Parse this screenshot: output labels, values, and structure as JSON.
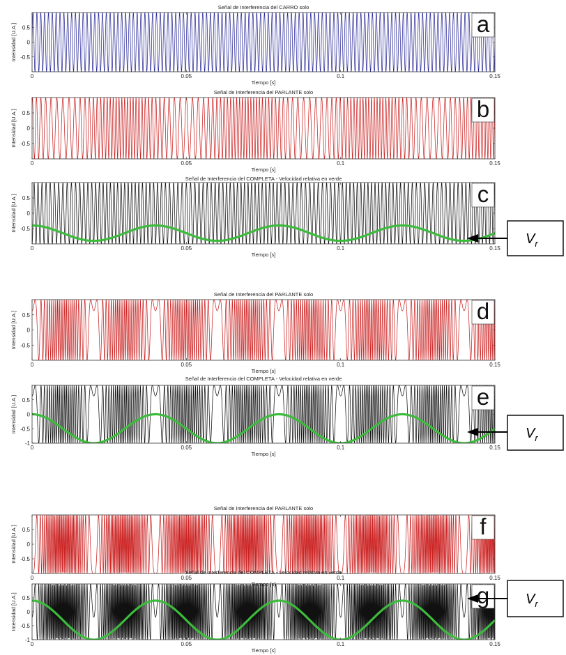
{
  "chart_data": [
    {
      "id": "a",
      "type": "line",
      "panel_letter": "a",
      "title": "Señal de Interferencia del CARRO solo",
      "xlabel": "Tiempo [s]",
      "ylabel": "Intensidad [U.A.]",
      "xlim": [
        0,
        0.15
      ],
      "ylim": [
        -1,
        1
      ],
      "x_ticks": [
        0,
        0.05,
        0.1,
        0.15
      ],
      "x_tick_labels": [
        "0",
        "0.05",
        "0.1",
        "0.15"
      ],
      "y_ticks": [
        0.5,
        0,
        -0.5
      ],
      "y_tick_labels": [
        "0.5",
        "0",
        "-0.5"
      ],
      "series": [
        {
          "color": "#2b2b9a",
          "signal": {
            "kind": "sine",
            "cycles_per_s": 800,
            "amplitude": 1
          }
        }
      ],
      "vr_marker": false
    },
    {
      "id": "b",
      "type": "line",
      "panel_letter": "b",
      "title": "Señal de Interferencia del PARLANTE solo",
      "xlabel": "Tiempo [s]",
      "ylabel": "Intensidad [U.A.]",
      "xlim": [
        0,
        0.15
      ],
      "ylim": [
        -1,
        1
      ],
      "x_ticks": [
        0,
        0.05,
        0.1,
        0.15
      ],
      "x_tick_labels": [
        "0",
        "0.05",
        "0.1",
        "0.15"
      ],
      "y_ticks": [
        0.5,
        0,
        -0.5
      ],
      "y_tick_labels": [
        "0.5",
        "0",
        "-0.5"
      ],
      "series": [
        {
          "color": "#cc2222",
          "signal": {
            "kind": "fm",
            "phase_rate": 800,
            "mod_depth": 12,
            "mod_freq_hz": 25,
            "amplitude": 1
          }
        }
      ],
      "vr_marker": false
    },
    {
      "id": "c",
      "type": "line",
      "panel_letter": "c",
      "title": "Señal de Interferencia del COMPLETA - Velocidad relativa en verde",
      "xlabel": "Tiempo [s]",
      "ylabel": "Intensidad [U.A.]",
      "xlim": [
        0,
        0.15
      ],
      "ylim": [
        -1,
        1
      ],
      "x_ticks": [
        0,
        0.05,
        0.1,
        0.15
      ],
      "x_tick_labels": [
        "0",
        "0.05",
        "0.1",
        "0.15"
      ],
      "y_ticks": [
        0.5,
        0,
        -0.5
      ],
      "y_tick_labels": [
        "0.5",
        "0",
        "-0.5"
      ],
      "series": [
        {
          "color": "#111111",
          "signal": {
            "kind": "fm",
            "phase_rate": 800,
            "mod_depth": 3,
            "mod_freq_hz": 25,
            "amplitude": 1
          }
        },
        {
          "color": "#3dbb3d",
          "velocity": true,
          "signal": {
            "kind": "vel",
            "center": -0.65,
            "amp": 0.25,
            "freq_hz": 25
          }
        }
      ],
      "vr_marker": true
    },
    {
      "id": "d",
      "type": "line",
      "panel_letter": "d",
      "title": "Señal de Interferencia del PARLANTE solo",
      "xlabel": "Tiempo [s]",
      "ylabel": "Intensidad [U.A.]",
      "xlim": [
        0,
        0.15
      ],
      "ylim": [
        -1,
        1
      ],
      "x_ticks": [
        0,
        0.05,
        0.1,
        0.15
      ],
      "x_tick_labels": [
        "0",
        "0.05",
        "0.1",
        "0.15"
      ],
      "y_ticks": [
        0.5,
        0,
        -0.5
      ],
      "y_tick_labels": [
        "0.5",
        "0",
        "-0.5"
      ],
      "series": [
        {
          "color": "#cc2222",
          "signal": {
            "kind": "fm",
            "phase_rate": 0,
            "mod_depth": 70,
            "mod_freq_hz": 25,
            "amplitude": 1
          }
        }
      ],
      "vr_marker": false
    },
    {
      "id": "e",
      "type": "line",
      "panel_letter": "e",
      "title": "Señal de Interferencia del COMPLETA - Velocidad relativa en verde",
      "xlabel": "Tiempo [s]",
      "ylabel": "Intensidad [U.A.]",
      "xlim": [
        0,
        0.15
      ],
      "ylim": [
        -1,
        1
      ],
      "x_ticks": [
        0,
        0.05,
        0.1,
        0.15
      ],
      "x_tick_labels": [
        "0",
        "0.05",
        "0.1",
        "0.15"
      ],
      "y_ticks": [
        0.5,
        0,
        -0.5,
        -1
      ],
      "y_tick_labels": [
        "0.5",
        "0",
        "-0.5",
        "-1"
      ],
      "series": [
        {
          "color": "#111111",
          "signal": {
            "kind": "fm",
            "phase_rate": 0,
            "mod_depth": 70,
            "mod_freq_hz": 25,
            "amplitude": 1
          }
        },
        {
          "color": "#3dbb3d",
          "velocity": true,
          "signal": {
            "kind": "vel",
            "center": -0.5,
            "amp": 0.5,
            "freq_hz": 25
          }
        }
      ],
      "vr_marker": true
    },
    {
      "id": "f",
      "type": "line",
      "panel_letter": "f",
      "title": "Señal de Interferencia del PARLANTE solo",
      "xlabel": "Tiempo [s]",
      "ylabel": "Intensidad [U.A.]",
      "xlim": [
        0,
        0.15
      ],
      "ylim": [
        -1,
        1
      ],
      "x_ticks": [
        0,
        0.05,
        0.1,
        0.15
      ],
      "x_tick_labels": [
        "0",
        "0.05",
        "0.1",
        "0.15"
      ],
      "y_ticks": [
        0.5,
        0,
        -0.5
      ],
      "y_tick_labels": [
        "0.5",
        "0",
        "-0.5"
      ],
      "series": [
        {
          "color": "#cc2222",
          "signal": {
            "kind": "fm",
            "phase_rate": 0,
            "mod_depth": 110,
            "mod_freq_hz": 25,
            "amplitude": 1
          }
        }
      ],
      "vr_marker": false
    },
    {
      "id": "g",
      "type": "line",
      "panel_letter": "g",
      "title": "Señal de Interferencia del COMPLETA - Velocidad relativa en verde",
      "xlabel": "Tiempo [s]",
      "ylabel": "Intensidad [U.A.]",
      "xlim": [
        0,
        0.15
      ],
      "ylim": [
        -1,
        1
      ],
      "x_ticks": [
        0,
        0.05,
        0.1,
        0.15
      ],
      "x_tick_labels": [
        "0",
        "0.05",
        "0.1",
        "0.15"
      ],
      "y_ticks": [
        0.5,
        0,
        -0.5,
        -1
      ],
      "y_tick_labels": [
        "0.5",
        "0",
        "-0.5",
        "-1"
      ],
      "series": [
        {
          "color": "#111111",
          "signal": {
            "kind": "fm",
            "phase_rate": 0,
            "mod_depth": 140,
            "mod_freq_hz": 25,
            "amplitude": 1
          }
        },
        {
          "color": "#3dbb3d",
          "velocity": true,
          "signal": {
            "kind": "vel",
            "center": -0.3,
            "amp": 0.7,
            "freq_hz": 25
          }
        }
      ],
      "vr_marker": true
    }
  ],
  "vr_label": {
    "symbol": "V",
    "subscript": "r"
  }
}
